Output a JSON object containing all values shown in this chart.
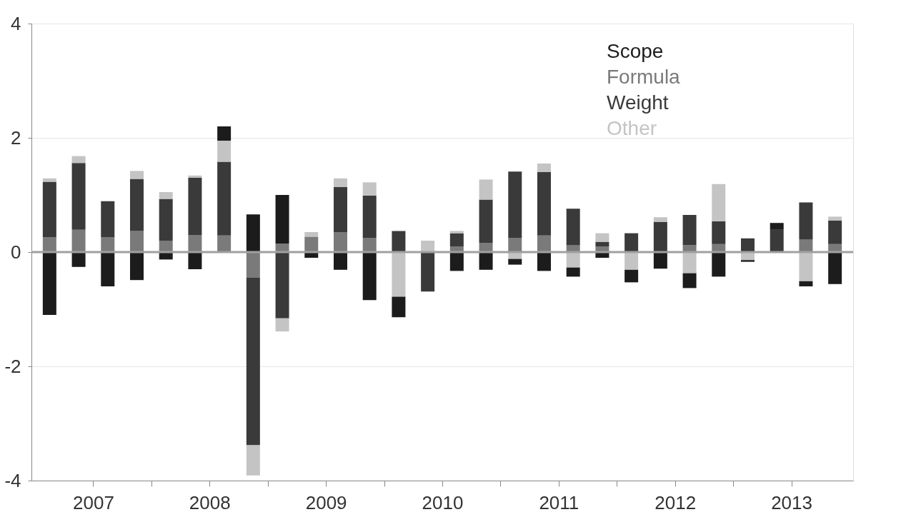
{
  "chart_data": {
    "type": "bar",
    "stacked": true,
    "x": [
      2006.625,
      2006.875,
      2007.125,
      2007.375,
      2007.625,
      2007.875,
      2008.125,
      2008.375,
      2008.625,
      2008.875,
      2009.125,
      2009.375,
      2009.625,
      2009.875,
      2010.125,
      2010.375,
      2010.625,
      2010.875,
      2011.125,
      2011.375,
      2011.625,
      2011.875,
      2012.125,
      2012.375,
      2012.625,
      2012.875,
      2013.125,
      2013.375
    ],
    "series": [
      {
        "name": "Formula",
        "color": "#7a7a7a",
        "values": [
          0.26,
          0.39,
          0.26,
          0.37,
          0.2,
          0.3,
          0.29,
          -0.45,
          0.15,
          0.27,
          0.35,
          0.25,
          0,
          0,
          0.1,
          0.16,
          0.25,
          0.29,
          0.12,
          0.1,
          0,
          0,
          0.12,
          0.14,
          0,
          0,
          0.22,
          0.14
        ]
      },
      {
        "name": "Weight",
        "color": "#3a3a3a",
        "values": [
          0.97,
          1.17,
          0.63,
          0.91,
          0.73,
          1.0,
          1.29,
          -2.93,
          -1.16,
          0,
          0.79,
          0.74,
          0.37,
          -0.69,
          0.23,
          0.76,
          1.16,
          1.11,
          0.64,
          0.08,
          0.33,
          0.53,
          0.53,
          0.4,
          0.24,
          0.39,
          0.65,
          0.41
        ]
      },
      {
        "name": "Other",
        "color": "#c4c4c4",
        "values": [
          0.06,
          0.12,
          0,
          0.14,
          0.12,
          0.04,
          0.37,
          -0.53,
          -0.23,
          0.08,
          0.15,
          0.23,
          -0.78,
          0.2,
          0.04,
          0.35,
          -0.12,
          0.15,
          -0.27,
          0.15,
          -0.31,
          0.08,
          -0.37,
          0.65,
          -0.14,
          0,
          -0.51,
          0.07
        ]
      },
      {
        "name": "Scope",
        "color": "#1c1c1c",
        "values": [
          -1.1,
          -0.26,
          -0.6,
          -0.49,
          -0.13,
          -0.3,
          0.25,
          0.66,
          0.85,
          -0.1,
          -0.31,
          -0.84,
          -0.36,
          0,
          -0.33,
          -0.31,
          -0.1,
          -0.33,
          -0.16,
          -0.1,
          -0.22,
          -0.29,
          -0.26,
          -0.43,
          -0.03,
          0.12,
          -0.09,
          -0.56
        ]
      }
    ],
    "xlim": [
      2006.5,
      2013.5
    ],
    "xticks": [
      2007,
      {
        "value": 2007.5,
        "label": null
      },
      2008,
      {
        "value": 2008.5,
        "label": null
      },
      2009,
      {
        "value": 2009.5,
        "label": null
      },
      2010,
      {
        "value": 2010.5,
        "label": null
      },
      2011,
      {
        "value": 2011.5,
        "label": null
      },
      2012,
      {
        "value": 2012.5,
        "label": null
      },
      2013
    ],
    "ylim": [
      -4,
      4
    ],
    "yticks": [
      -4,
      -2,
      0,
      2,
      4
    ],
    "grid": "y",
    "legend": "top right",
    "ref_lines": [
      {
        "axis": "y",
        "value": 0,
        "color": "#a0a0a0"
      }
    ]
  }
}
